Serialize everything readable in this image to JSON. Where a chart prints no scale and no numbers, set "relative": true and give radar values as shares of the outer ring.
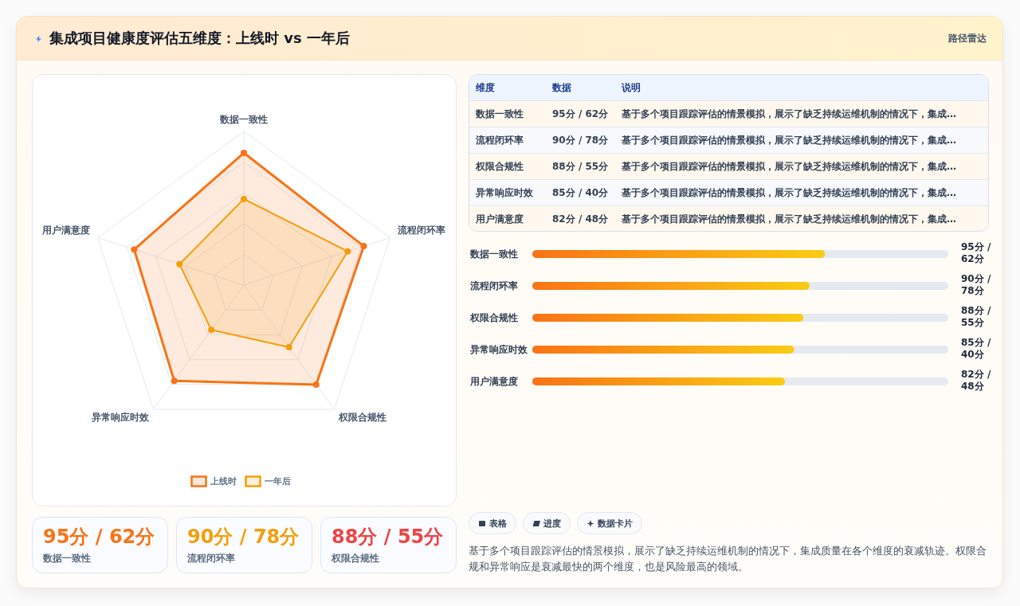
{
  "chart_data": [
    {
      "type": "radar",
      "title": "集成项目健康度评估五维度：上线时 vs 一年后",
      "categories": [
        "数据一致性",
        "流程闭环率",
        "权限合规性",
        "异常响应时效",
        "用户满意度"
      ],
      "relative": true,
      "series": [
        {
          "name": "上线时",
          "color": "#f97316",
          "values": [
            0.86,
            0.82,
            0.8,
            0.77,
            0.75
          ]
        },
        {
          "name": "一年后",
          "color": "#f59e0b",
          "values": [
            0.56,
            0.71,
            0.5,
            0.36,
            0.44
          ]
        }
      ],
      "grid": true,
      "legend": "bottom",
      "marker": "circle"
    },
    {
      "type": "other",
      "title": "路径雷达",
      "categories": [
        "维度",
        "数据",
        "说明"
      ],
      "cell_labels": [
        [
          "数据一致性",
          "95分 / 62分",
          "基于多个项目跟踪评估的情景模拟，展示了缺乏持续运维机制的情况下，集成…"
        ],
        [
          "流程闭环率",
          "90分 / 78分",
          "基于多个项目跟踪评估的情景模拟，展示了缺乏持续运维机制的情况下，集成…"
        ],
        [
          "权限合规性",
          "88分 / 55分",
          "基于多个项目跟踪评估的情景模拟，展示了缺乏持续运维机制的情况下，集成…"
        ],
        [
          "异常响应时效",
          "85分 / 40分",
          "基于多个项目跟踪评估的情景模拟，展示了缺乏持续运维机制的情况下，集成…"
        ],
        [
          "用户满意度",
          "82分 / 48分",
          "基于多个项目跟踪评估的情景模拟，展示了缺乏持续运维机制的情况下，集成…"
        ]
      ]
    },
    {
      "type": "bar",
      "orientation": "horizontal",
      "categories": [
        "数据一致性",
        "流程闭环率",
        "权限合规性",
        "异常响应时效",
        "用户满意度"
      ],
      "values": [
        95,
        90,
        88,
        85,
        82
      ],
      "value_labels": [
        "95分 / 62分",
        "90分 / 78分",
        "88分 / 55分",
        "85分 / 40分",
        "82分 / 48分"
      ],
      "color": "#f97316",
      "xlim": [
        0,
        135
      ],
      "tick_labels": "y"
    },
    {
      "type": "other",
      "categories": [
        "数据一致性",
        "流程闭环率",
        "权限合规性"
      ],
      "value_labels": [
        "95分 / 62分",
        "90分 / 78分",
        "88分 / 55分"
      ]
    },
    {
      "type": "other",
      "categories": [
        "表格",
        "进度",
        "数据卡片"
      ],
      "annotations": [
        "基于多个项目跟踪评估的情景模拟，展示了缺乏持续运维机制的情况下，集成质量在各个维度的衰减轨迹。权限合规和异常响应是衰减最快的两个维度，也是风险最高的领域。"
      ]
    }
  ]
}
